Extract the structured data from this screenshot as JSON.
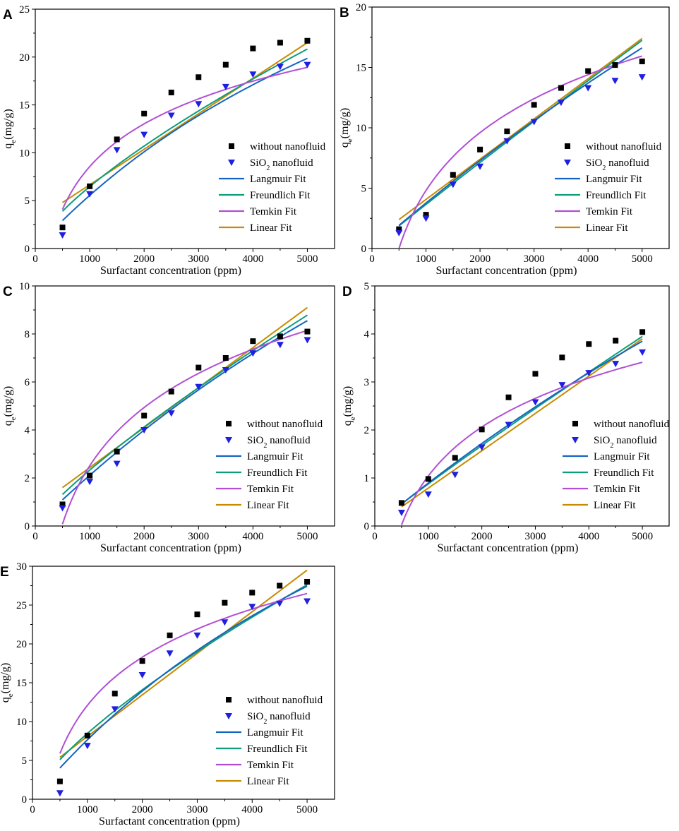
{
  "figure": {
    "colors": {
      "without": "#000000",
      "sio2": "#1f1fe0",
      "langmuir": "#1565c0",
      "freundlich": "#0a9e7a",
      "temkin": "#b04fd6",
      "linear": "#c88a00"
    },
    "legend": {
      "without": "without nanofluid",
      "sio2_prefix": "SiO",
      "sio2_sub": "2",
      "sio2_suffix": " nanofluid",
      "langmuir": "Langmuir Fit",
      "freundlich": "Freundlich Fit",
      "temkin": "Temkin Fit",
      "linear": "Linear Fit"
    },
    "xlabel": "Surfactant concentration (ppm)",
    "ylabel_main": "q",
    "ylabel_sub": "e",
    "ylabel_unit": "(mg/g)"
  },
  "chart_data": [
    {
      "panel": "A",
      "type": "scatter",
      "xlim": [
        0,
        5500
      ],
      "ylim": [
        0,
        25
      ],
      "xticks": [
        0,
        1000,
        2000,
        3000,
        4000,
        5000
      ],
      "yticks": [
        0,
        5,
        10,
        15,
        20,
        25
      ],
      "x": [
        500,
        1000,
        1500,
        2000,
        2500,
        3000,
        3500,
        4000,
        4500,
        5000
      ],
      "series": [
        {
          "name": "without nanofluid",
          "values": [
            2.2,
            6.5,
            11.4,
            14.1,
            16.3,
            17.9,
            19.2,
            20.9,
            21.5,
            21.7
          ]
        },
        {
          "name": "SiO2 nanofluid",
          "values": [
            1.4,
            5.7,
            10.3,
            11.9,
            13.9,
            15.1,
            16.9,
            18.2,
            19.0,
            19.2
          ]
        }
      ],
      "fits": {
        "Langmuir Fit": {
          "x": [
            500,
            5000
          ],
          "qmax": 55.95,
          "KL": 0.0001101
        },
        "Freundlich Fit": {
          "x": [
            500,
            5000
          ],
          "KF": 0.04255,
          "n_inv": 0.7272
        },
        "Temkin Fit": {
          "x": [
            500,
            5000
          ],
          "A": -35.937,
          "B": 6.441
        },
        "Linear Fit": {
          "x": [
            500,
            5000
          ],
          "y": [
            4.8,
            21.5
          ]
        }
      }
    },
    {
      "panel": "B",
      "type": "scatter",
      "xlim": [
        0,
        5500
      ],
      "ylim": [
        0,
        20
      ],
      "xticks": [
        0,
        1000,
        2000,
        3000,
        4000,
        5000
      ],
      "yticks": [
        0,
        5,
        10,
        15,
        20
      ],
      "x": [
        500,
        1000,
        1500,
        2000,
        2500,
        3000,
        3500,
        4000,
        4500,
        5000
      ],
      "series": [
        {
          "name": "without nanofluid",
          "values": [
            1.6,
            2.8,
            6.1,
            8.2,
            9.7,
            11.9,
            13.3,
            14.7,
            15.2,
            15.5
          ]
        },
        {
          "name": "SiO2 nanofluid",
          "values": [
            1.3,
            2.5,
            5.3,
            6.8,
            8.9,
            10.5,
            12.1,
            13.3,
            13.9,
            14.2
          ]
        }
      ],
      "fits": {
        "Langmuir Fit": {
          "x": [
            500,
            5000
          ],
          "qmax": 112.7,
          "KL": 3.46e-05
        },
        "Freundlich Fit": {
          "x": [
            500,
            5000
          ],
          "KF": 0.004656,
          "n_inv": 0.9648
        },
        "Temkin Fit": {
          "x": [
            500,
            5000
          ],
          "A": -43.012,
          "B": 6.922
        },
        "Linear Fit": {
          "x": [
            500,
            5000
          ],
          "y": [
            2.4,
            17.4
          ]
        }
      }
    },
    {
      "panel": "C",
      "type": "scatter",
      "xlim": [
        0,
        5500
      ],
      "ylim": [
        0,
        10
      ],
      "xticks": [
        0,
        1000,
        2000,
        3000,
        4000,
        5000
      ],
      "yticks": [
        0,
        2,
        4,
        6,
        8,
        10
      ],
      "x": [
        500,
        1000,
        1500,
        2000,
        2500,
        3000,
        3500,
        4000,
        4500,
        5000
      ],
      "series": [
        {
          "name": "without nanofluid",
          "values": [
            0.9,
            2.1,
            3.1,
            4.6,
            5.6,
            6.6,
            7.0,
            7.7,
            7.9,
            8.1
          ]
        },
        {
          "name": "SiO2 nanofluid",
          "values": [
            0.75,
            1.85,
            2.6,
            4.0,
            4.7,
            5.8,
            6.5,
            7.2,
            7.55,
            7.75
          ]
        }
      ],
      "fits": {
        "Langmuir Fit": {
          "x": [
            500,
            5000
          ],
          "qmax": 36.06,
          "KL": 6.22e-05
        },
        "Freundlich Fit": {
          "x": [
            500,
            5000
          ],
          "KF": 0.007766,
          "n_inv": 0.8255
        },
        "Temkin Fit": {
          "x": [
            500,
            5000
          ],
          "A": -21.698,
          "B": 3.504
        },
        "Linear Fit": {
          "x": [
            500,
            5000
          ],
          "y": [
            1.6,
            9.1
          ]
        }
      }
    },
    {
      "panel": "D",
      "type": "scatter",
      "xlim": [
        0,
        5500
      ],
      "ylim": [
        0,
        5
      ],
      "xticks": [
        0,
        1000,
        2000,
        3000,
        4000,
        5000
      ],
      "yticks": [
        0,
        1,
        2,
        3,
        4,
        5
      ],
      "x": [
        500,
        1000,
        1500,
        2000,
        2500,
        3000,
        3500,
        4000,
        4500,
        5000
      ],
      "series": [
        {
          "name": "without nanofluid",
          "values": [
            0.48,
            0.98,
            1.42,
            2.01,
            2.68,
            3.17,
            3.51,
            3.79,
            3.86,
            4.04
          ]
        },
        {
          "name": "SiO2 nanofluid",
          "values": [
            0.28,
            0.66,
            1.07,
            1.64,
            2.11,
            2.58,
            2.94,
            3.19,
            3.38,
            3.62
          ]
        }
      ],
      "fits": {
        "Langmuir Fit": {
          "x": [
            500,
            5000
          ],
          "qmax": 22.27,
          "KL": 4.18e-05
        },
        "Freundlich Fit": {
          "x": [
            500,
            5000
          ],
          "KF": 0.001369,
          "n_inv": 0.9354
        },
        "Temkin Fit": {
          "x": [
            500,
            5000
          ],
          "A": -9.127,
          "B": 1.472
        },
        "Linear Fit": {
          "x": [
            500,
            5000
          ],
          "y": [
            0.4,
            3.9
          ]
        }
      }
    },
    {
      "panel": "E",
      "type": "scatter",
      "xlim": [
        0,
        5500
      ],
      "ylim": [
        0,
        30
      ],
      "xticks": [
        0,
        1000,
        2000,
        3000,
        4000,
        5000
      ],
      "yticks": [
        0,
        5,
        10,
        15,
        20,
        25,
        30
      ],
      "x": [
        500,
        1000,
        1500,
        2000,
        2500,
        3000,
        3500,
        4000,
        4500,
        5000
      ],
      "series": [
        {
          "name": "without nanofluid",
          "values": [
            2.3,
            8.2,
            13.6,
            17.8,
            21.1,
            23.8,
            25.3,
            26.6,
            27.5,
            28.0
          ]
        },
        {
          "name": "SiO2 nanofluid",
          "values": [
            0.8,
            6.9,
            11.6,
            16.0,
            18.8,
            21.1,
            22.8,
            24.8,
            25.2,
            25.5
          ]
        }
      ],
      "fits": {
        "Langmuir Fit": {
          "x": [
            500,
            5000
          ],
          "qmax": 77.77,
          "KL": 0.000109
        },
        "Freundlich Fit": {
          "x": [
            500,
            5000
          ],
          "KF": 0.05304,
          "n_inv": 0.7344
        },
        "Temkin Fit": {
          "x": [
            500,
            5000
          ],
          "A": -49.718,
          "B": 8.947
        },
        "Linear Fit": {
          "x": [
            500,
            5000
          ],
          "y": [
            5.4,
            29.5
          ]
        }
      }
    }
  ]
}
